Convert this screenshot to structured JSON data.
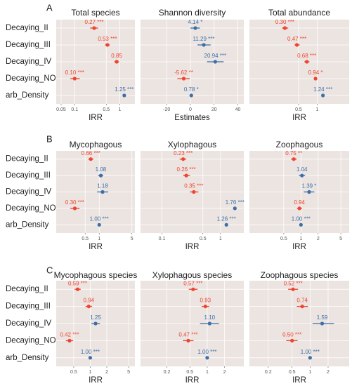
{
  "chart_data": [
    {
      "type": "forest",
      "panel_label": "A",
      "title": "Total species",
      "xlabel": "IRR",
      "xscale": "log",
      "categories": [
        "Decaying_II",
        "Decaying_III",
        "Decaying_IV",
        "Decaying_NO",
        "arb_Density"
      ],
      "values": [
        0.27,
        0.53,
        0.85,
        0.1,
        1.25
      ],
      "ci_low": [
        0.22,
        0.47,
        0.75,
        0.08,
        1.2
      ],
      "ci_high": [
        0.33,
        0.6,
        0.96,
        0.13,
        1.3
      ],
      "value_labels": [
        "0.27 ***",
        "0.53 ***",
        "0.85",
        "0.10 ***",
        "1.25 ***"
      ],
      "colors": [
        "#f0442f",
        "#f0442f",
        "#f0442f",
        "#f0442f",
        "#3d6fa8"
      ],
      "xlim": [
        0.039,
        2.15
      ],
      "xticks": [
        0.05,
        0.1,
        0.5,
        1
      ],
      "grid": true
    },
    {
      "type": "forest",
      "title": "Shannon diversity",
      "xlabel": "Estimates",
      "xscale": "linear",
      "values": [
        4.14,
        11.29,
        20.94,
        -5.62,
        0.78
      ],
      "ci_low": [
        0,
        6,
        14,
        -11,
        0.2
      ],
      "ci_high": [
        8,
        17,
        28,
        -0.5,
        1.4
      ],
      "value_labels": [
        "4.14 *",
        "11.29 ***",
        "20.94 ***",
        "-5.62 **",
        "0.78 *"
      ],
      "colors": [
        "#3d6fa8",
        "#3d6fa8",
        "#3d6fa8",
        "#f0442f",
        "#3d6fa8"
      ],
      "xlim": [
        -42,
        45
      ],
      "xticks": [
        -20,
        0,
        20,
        40
      ],
      "grid": true
    },
    {
      "type": "forest",
      "title": "Total abundance",
      "xlabel": "IRR",
      "xscale": "log",
      "values": [
        0.3,
        0.47,
        0.68,
        0.94,
        1.24
      ],
      "ci_low": [
        0.27,
        0.43,
        0.62,
        0.89,
        1.2
      ],
      "ci_high": [
        0.34,
        0.52,
        0.75,
        0.99,
        1.28
      ],
      "value_labels": [
        "0.30 ***",
        "0.47 ***",
        "0.68 ***",
        "0.94 *",
        "1.24 ***"
      ],
      "colors": [
        "#f0442f",
        "#f0442f",
        "#f0442f",
        "#f0442f",
        "#3d6fa8"
      ],
      "xlim": [
        0.08,
        3.3
      ],
      "xticks": [
        0.5,
        1
      ],
      "grid": true
    },
    {
      "type": "forest",
      "panel_label": "B",
      "title": "Mycophagous",
      "xlabel": "IRR",
      "xscale": "log",
      "categories": [
        "Decaying_II",
        "Decaying_III",
        "Decaying_IV",
        "Decaying_NO",
        "arb_Density"
      ],
      "values": [
        0.66,
        1.08,
        1.18,
        0.3,
        1.0
      ],
      "ci_low": [
        0.58,
        0.95,
        0.9,
        0.24,
        0.98
      ],
      "ci_high": [
        0.75,
        1.22,
        1.55,
        0.38,
        1.02
      ],
      "value_labels": [
        "0.66 ***",
        "1.08",
        "1.18",
        "0.30 ***",
        "1.00 ***"
      ],
      "colors": [
        "#f0442f",
        "#3d6fa8",
        "#3d6fa8",
        "#f0442f",
        "#3d6fa8"
      ],
      "xlim": [
        0.12,
        5.8
      ],
      "xticks": [
        0.5,
        1,
        5
      ],
      "grid": true
    },
    {
      "type": "forest",
      "title": "Xylophagous",
      "xlabel": "IRR",
      "xscale": "log",
      "values": [
        0.23,
        0.26,
        0.35,
        1.76,
        1.26
      ],
      "ci_low": [
        0.2,
        0.23,
        0.3,
        1.65,
        1.22
      ],
      "ci_high": [
        0.26,
        0.3,
        0.42,
        1.88,
        1.3
      ],
      "value_labels": [
        "0.23 ***",
        "0.26 ***",
        "0.35 ***",
        "1.76 ***",
        "1.26 ***"
      ],
      "colors": [
        "#f0442f",
        "#f0442f",
        "#f0442f",
        "#3d6fa8",
        "#3d6fa8"
      ],
      "xlim": [
        0.043,
        2.5
      ],
      "xticks": [
        0.1,
        0.5,
        1
      ],
      "grid": true
    },
    {
      "type": "forest",
      "title": "Zoophagous",
      "xlabel": "IRR",
      "xscale": "log",
      "values": [
        0.75,
        1.04,
        1.39,
        0.94,
        1.0
      ],
      "ci_low": [
        0.67,
        0.92,
        1.12,
        0.85,
        0.98
      ],
      "ci_high": [
        0.84,
        1.18,
        1.72,
        1.04,
        1.02
      ],
      "value_labels": [
        "0.75 **",
        "1.04",
        "1.39 *",
        "0.94",
        "1.00 ***"
      ],
      "colors": [
        "#f0442f",
        "#3d6fa8",
        "#3d6fa8",
        "#f0442f",
        "#3d6fa8"
      ],
      "xlim": [
        0.125,
        7
      ],
      "xticks": [
        0.5,
        1,
        2,
        5
      ],
      "grid": true
    },
    {
      "type": "forest",
      "panel_label": "C",
      "title": "Mycophagous species",
      "xlabel": "IRR",
      "xscale": "log",
      "categories": [
        "Decaying_II",
        "Decaying_III",
        "Decaying_IV",
        "Decaying_NO",
        "arb_Density"
      ],
      "values": [
        0.59,
        0.94,
        1.25,
        0.42,
        1.0
      ],
      "ci_low": [
        0.52,
        0.82,
        1.05,
        0.36,
        0.98
      ],
      "ci_high": [
        0.67,
        1.08,
        1.5,
        0.49,
        1.02
      ],
      "value_labels": [
        "0.59 ***",
        "0.94",
        "1.25",
        "0.42 ***",
        "1.00 ***"
      ],
      "colors": [
        "#f0442f",
        "#f0442f",
        "#3d6fa8",
        "#f0442f",
        "#3d6fa8"
      ],
      "xlim": [
        0.24,
        6.5
      ],
      "xticks": [
        0.5,
        1,
        2,
        5
      ],
      "grid": true
    },
    {
      "type": "forest",
      "title": "Xylophagous species",
      "xlabel": "IRR",
      "xscale": "log",
      "values": [
        0.57,
        0.93,
        1.1,
        0.47,
        1.0
      ],
      "ci_low": [
        0.48,
        0.8,
        0.75,
        0.38,
        0.98
      ],
      "ci_high": [
        0.68,
        1.08,
        1.6,
        0.58,
        1.02
      ],
      "value_labels": [
        "0.57 ***",
        "0.93",
        "1.10",
        "0.47 ***",
        "1.00 ***"
      ],
      "colors": [
        "#f0442f",
        "#f0442f",
        "#3d6fa8",
        "#f0442f",
        "#3d6fa8"
      ],
      "xlim": [
        0.07,
        4.3
      ],
      "xticks": [
        0.2,
        0.5,
        1,
        2
      ],
      "grid": true
    },
    {
      "type": "forest",
      "title": "Zoophagous species",
      "xlabel": "IRR",
      "xscale": "log",
      "values": [
        0.52,
        0.74,
        1.59,
        0.5,
        1.0
      ],
      "ci_low": [
        0.43,
        0.6,
        1.1,
        0.4,
        0.98
      ],
      "ci_high": [
        0.63,
        0.92,
        2.5,
        0.62,
        1.02
      ],
      "value_labels": [
        "0.52 ***",
        "0.74",
        "1.59",
        "0.50 ***",
        "1.00 ***"
      ],
      "colors": [
        "#f0442f",
        "#f0442f",
        "#3d6fa8",
        "#f0442f",
        "#3d6fa8"
      ],
      "xlim": [
        0.097,
        4.5
      ],
      "xticks": [
        0.2,
        0.5,
        1,
        2
      ],
      "grid": true
    }
  ]
}
